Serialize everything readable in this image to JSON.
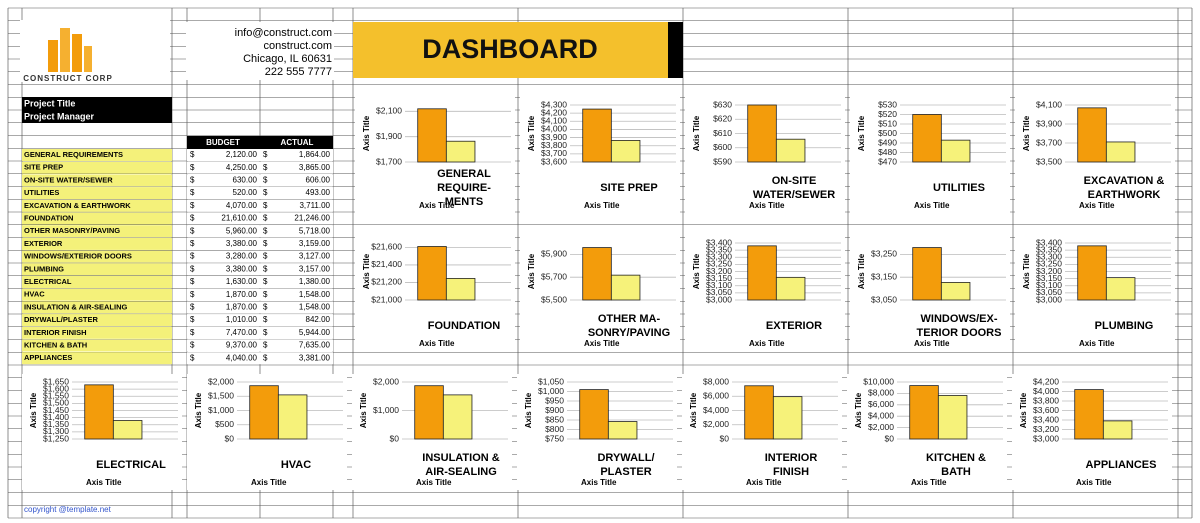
{
  "header": {
    "company": "CONSTRUCT CORP",
    "contact": [
      "info@construct.com",
      "construct.com",
      "Chicago, IL 60631",
      "222 555 7777"
    ],
    "title": "DASHBOARD"
  },
  "project": [
    "Project Title",
    "Project Manager"
  ],
  "table": {
    "columns": [
      "BUDGET",
      "ACTUAL"
    ],
    "currency": "$",
    "rows": [
      [
        "GENERAL REQUIREMENTS",
        "2,120.00",
        "1,864.00"
      ],
      [
        "SITE PREP",
        "4,250.00",
        "3,865.00"
      ],
      [
        "ON-SITE WATER/SEWER",
        "630.00",
        "606.00"
      ],
      [
        "UTILITIES",
        "520.00",
        "493.00"
      ],
      [
        "EXCAVATION & EARTHWORK",
        "4,070.00",
        "3,711.00"
      ],
      [
        "FOUNDATION",
        "21,610.00",
        "21,246.00"
      ],
      [
        "OTHER MASONRY/PAVING",
        "5,960.00",
        "5,718.00"
      ],
      [
        "EXTERIOR",
        "3,380.00",
        "3,159.00"
      ],
      [
        "WINDOWS/EXTERIOR DOORS",
        "3,280.00",
        "3,127.00"
      ],
      [
        "PLUMBING",
        "3,380.00",
        "3,157.00"
      ],
      [
        "ELECTRICAL",
        "1,630.00",
        "1,380.00"
      ],
      [
        "HVAC",
        "1,870.00",
        "1,548.00"
      ],
      [
        "INSULATION & AIR-SEALING",
        "1,870.00",
        "1,548.00"
      ],
      [
        "DRYWALL/PLASTER",
        "1,010.00",
        "842.00"
      ],
      [
        "INTERIOR FINISH",
        "7,470.00",
        "5,944.00"
      ],
      [
        "KITCHEN & BATH",
        "9,370.00",
        "7,635.00"
      ],
      [
        "APPLIANCES",
        "4,040.00",
        "3,381.00"
      ]
    ]
  },
  "chart_data": [
    {
      "type": "bar",
      "title": [
        "GENERAL",
        "REQUIRE-",
        "MENTS"
      ],
      "xlabel": "Axis Title",
      "ylabel": "Axis Title",
      "values": [
        2120,
        1864
      ],
      "colors": [
        "#f39c0b",
        "#f6f27a"
      ],
      "ylim": [
        1700,
        2150
      ],
      "yticks": [
        {
          "value": 1700,
          "label": "$1,700"
        },
        {
          "value": 1900,
          "label": "$1,900"
        },
        {
          "value": 2100,
          "label": "$2,100"
        }
      ]
    },
    {
      "type": "bar",
      "title": [
        "SITE PREP"
      ],
      "xlabel": "Axis Title",
      "ylabel": "Axis Title",
      "values": [
        4250,
        3865
      ],
      "colors": [
        "#f39c0b",
        "#f6f27a"
      ],
      "ylim": [
        3600,
        4300
      ],
      "yticks": [
        {
          "value": 3600,
          "label": "$3,600"
        },
        {
          "value": 3700,
          "label": "$3,700"
        },
        {
          "value": 3800,
          "label": "$3,800"
        },
        {
          "value": 3900,
          "label": "$3,900"
        },
        {
          "value": 4000,
          "label": "$4,000"
        },
        {
          "value": 4100,
          "label": "$4,100"
        },
        {
          "value": 4200,
          "label": "$4,200"
        },
        {
          "value": 4300,
          "label": "$4,300"
        }
      ]
    },
    {
      "type": "bar",
      "title": [
        "ON-SITE",
        "WATER/SEWER"
      ],
      "xlabel": "Axis Title",
      "ylabel": "Axis Title",
      "values": [
        630,
        606
      ],
      "colors": [
        "#f39c0b",
        "#f6f27a"
      ],
      "ylim": [
        590,
        630
      ],
      "yticks": [
        {
          "value": 590,
          "label": "$590"
        },
        {
          "value": 600,
          "label": "$600"
        },
        {
          "value": 610,
          "label": "$610"
        },
        {
          "value": 620,
          "label": "$620"
        },
        {
          "value": 630,
          "label": "$630"
        }
      ]
    },
    {
      "type": "bar",
      "title": [
        "UTILITIES"
      ],
      "xlabel": "Axis Title",
      "ylabel": "Axis Title",
      "values": [
        520,
        493
      ],
      "colors": [
        "#f39c0b",
        "#f6f27a"
      ],
      "ylim": [
        470,
        530
      ],
      "yticks": [
        {
          "value": 470,
          "label": "$470"
        },
        {
          "value": 480,
          "label": "$480"
        },
        {
          "value": 490,
          "label": "$490"
        },
        {
          "value": 500,
          "label": "$500"
        },
        {
          "value": 510,
          "label": "$510"
        },
        {
          "value": 520,
          "label": "$520"
        },
        {
          "value": 530,
          "label": "$530"
        }
      ]
    },
    {
      "type": "bar",
      "title": [
        "EXCAVATION &",
        "EARTHWORK"
      ],
      "xlabel": "Axis Title",
      "ylabel": "Axis Title",
      "values": [
        4070,
        3711
      ],
      "colors": [
        "#f39c0b",
        "#f6f27a"
      ],
      "ylim": [
        3500,
        4100
      ],
      "yticks": [
        {
          "value": 3500,
          "label": "$3,500"
        },
        {
          "value": 3700,
          "label": "$3,700"
        },
        {
          "value": 3900,
          "label": "$3,900"
        },
        {
          "value": 4100,
          "label": "$4,100"
        }
      ]
    },
    {
      "type": "bar",
      "title": [
        "FOUNDATION"
      ],
      "xlabel": "Axis Title",
      "ylabel": "Axis Title",
      "values": [
        21610,
        21246
      ],
      "colors": [
        "#f39c0b",
        "#f6f27a"
      ],
      "ylim": [
        21000,
        21650
      ],
      "yticks": [
        {
          "value": 21000,
          "label": "$21,000"
        },
        {
          "value": 21200,
          "label": "$21,200"
        },
        {
          "value": 21400,
          "label": "$21,400"
        },
        {
          "value": 21600,
          "label": "$21,600"
        }
      ]
    },
    {
      "type": "bar",
      "title": [
        "OTHER MA-",
        "SONRY/PAVING"
      ],
      "xlabel": "Axis Title",
      "ylabel": "Axis Title",
      "values": [
        5960,
        5718
      ],
      "colors": [
        "#f39c0b",
        "#f6f27a"
      ],
      "ylim": [
        5500,
        6000
      ],
      "yticks": [
        {
          "value": 5500,
          "label": "$5,500"
        },
        {
          "value": 5700,
          "label": "$5,700"
        },
        {
          "value": 5900,
          "label": "$5,900"
        }
      ]
    },
    {
      "type": "bar",
      "title": [
        "EXTERIOR"
      ],
      "xlabel": "Axis Title",
      "ylabel": "Axis Title",
      "values": [
        3380,
        3159
      ],
      "colors": [
        "#f39c0b",
        "#f6f27a"
      ],
      "ylim": [
        3000,
        3400
      ],
      "yticks": [
        {
          "value": 3000,
          "label": "$3,000"
        },
        {
          "value": 3050,
          "label": "$3,050"
        },
        {
          "value": 3100,
          "label": "$3,100"
        },
        {
          "value": 3150,
          "label": "$3,150"
        },
        {
          "value": 3200,
          "label": "$3,200"
        },
        {
          "value": 3250,
          "label": "$3,250"
        },
        {
          "value": 3300,
          "label": "$3,300"
        },
        {
          "value": 3350,
          "label": "$3,350"
        },
        {
          "value": 3400,
          "label": "$3,400"
        }
      ]
    },
    {
      "type": "bar",
      "title": [
        "WINDOWS/EX-",
        "TERIOR DOORS"
      ],
      "xlabel": "Axis Title",
      "ylabel": "Axis Title",
      "values": [
        3280,
        3127
      ],
      "colors": [
        "#f39c0b",
        "#f6f27a"
      ],
      "ylim": [
        3050,
        3300
      ],
      "yticks": [
        {
          "value": 3050,
          "label": "$3,050"
        },
        {
          "value": 3150,
          "label": "$3,150"
        },
        {
          "value": 3250,
          "label": "$3,250"
        }
      ]
    },
    {
      "type": "bar",
      "title": [
        "PLUMBING"
      ],
      "xlabel": "Axis Title",
      "ylabel": "Axis Title",
      "values": [
        3380,
        3157
      ],
      "colors": [
        "#f39c0b",
        "#f6f27a"
      ],
      "ylim": [
        3000,
        3400
      ],
      "yticks": [
        {
          "value": 3000,
          "label": "$3,000"
        },
        {
          "value": 3050,
          "label": "$3,050"
        },
        {
          "value": 3100,
          "label": "$3,100"
        },
        {
          "value": 3150,
          "label": "$3,150"
        },
        {
          "value": 3200,
          "label": "$3,200"
        },
        {
          "value": 3250,
          "label": "$3,250"
        },
        {
          "value": 3300,
          "label": "$3,300"
        },
        {
          "value": 3350,
          "label": "$3,350"
        },
        {
          "value": 3400,
          "label": "$3,400"
        }
      ]
    },
    {
      "type": "bar",
      "title": [
        "ELECTRICAL"
      ],
      "xlabel": "Axis Title",
      "ylabel": "Axis Title",
      "values": [
        1630,
        1380
      ],
      "colors": [
        "#f39c0b",
        "#f6f27a"
      ],
      "ylim": [
        1250,
        1650
      ],
      "yticks": [
        {
          "value": 1250,
          "label": "$1,250"
        },
        {
          "value": 1300,
          "label": "$1,300"
        },
        {
          "value": 1350,
          "label": "$1,350"
        },
        {
          "value": 1400,
          "label": "$1,400"
        },
        {
          "value": 1450,
          "label": "$1,450"
        },
        {
          "value": 1500,
          "label": "$1,500"
        },
        {
          "value": 1550,
          "label": "$1,550"
        },
        {
          "value": 1600,
          "label": "$1,600"
        },
        {
          "value": 1650,
          "label": "$1,650"
        }
      ]
    },
    {
      "type": "bar",
      "title": [
        "HVAC"
      ],
      "xlabel": "Axis Title",
      "ylabel": "Axis Title",
      "values": [
        1870,
        1548
      ],
      "colors": [
        "#f39c0b",
        "#f6f27a"
      ],
      "ylim": [
        0,
        2000
      ],
      "yticks": [
        {
          "value": 0,
          "label": "$0"
        },
        {
          "value": 500,
          "label": "$500"
        },
        {
          "value": 1000,
          "label": "$1,000"
        },
        {
          "value": 1500,
          "label": "$1,500"
        },
        {
          "value": 2000,
          "label": "$2,000"
        }
      ]
    },
    {
      "type": "bar",
      "title": [
        "INSULATION &",
        "AIR-SEALING"
      ],
      "xlabel": "Axis Title",
      "ylabel": "Axis Title",
      "values": [
        1870,
        1548
      ],
      "colors": [
        "#f39c0b",
        "#f6f27a"
      ],
      "ylim": [
        0,
        2000
      ],
      "yticks": [
        {
          "value": 0,
          "label": "$0"
        },
        {
          "value": 1000,
          "label": "$1,000"
        },
        {
          "value": 2000,
          "label": "$2,000"
        }
      ]
    },
    {
      "type": "bar",
      "title": [
        "DRYWALL/",
        "PLASTER"
      ],
      "xlabel": "Axis Title",
      "ylabel": "Axis Title",
      "values": [
        1010,
        842
      ],
      "colors": [
        "#f39c0b",
        "#f6f27a"
      ],
      "ylim": [
        750,
        1050
      ],
      "yticks": [
        {
          "value": 750,
          "label": "$750"
        },
        {
          "value": 800,
          "label": "$800"
        },
        {
          "value": 850,
          "label": "$850"
        },
        {
          "value": 900,
          "label": "$900"
        },
        {
          "value": 950,
          "label": "$950"
        },
        {
          "value": 1000,
          "label": "$1,000"
        },
        {
          "value": 1050,
          "label": "$1,050"
        }
      ]
    },
    {
      "type": "bar",
      "title": [
        "INTERIOR",
        "FINISH"
      ],
      "xlabel": "Axis Title",
      "ylabel": "Axis Title",
      "values": [
        7470,
        5944
      ],
      "colors": [
        "#f39c0b",
        "#f6f27a"
      ],
      "ylim": [
        0,
        8000
      ],
      "yticks": [
        {
          "value": 0,
          "label": "$0"
        },
        {
          "value": 2000,
          "label": "$2,000"
        },
        {
          "value": 4000,
          "label": "$4,000"
        },
        {
          "value": 6000,
          "label": "$6,000"
        },
        {
          "value": 8000,
          "label": "$8,000"
        }
      ]
    },
    {
      "type": "bar",
      "title": [
        "KITCHEN &",
        "BATH"
      ],
      "xlabel": "Axis Title",
      "ylabel": "Axis Title",
      "values": [
        9370,
        7635
      ],
      "colors": [
        "#f39c0b",
        "#f6f27a"
      ],
      "ylim": [
        0,
        10000
      ],
      "yticks": [
        {
          "value": 0,
          "label": "$0"
        },
        {
          "value": 2000,
          "label": "$2,000"
        },
        {
          "value": 4000,
          "label": "$4,000"
        },
        {
          "value": 6000,
          "label": "$6,000"
        },
        {
          "value": 8000,
          "label": "$8,000"
        },
        {
          "value": 10000,
          "label": "$10,000"
        }
      ]
    },
    {
      "type": "bar",
      "title": [
        "APPLIANCES"
      ],
      "xlabel": "Axis Title",
      "ylabel": "Axis Title",
      "values": [
        4040,
        3381
      ],
      "colors": [
        "#f39c0b",
        "#f6f27a"
      ],
      "ylim": [
        3000,
        4200
      ],
      "yticks": [
        {
          "value": 3000,
          "label": "$3,000"
        },
        {
          "value": 3200,
          "label": "$3,200"
        },
        {
          "value": 3400,
          "label": "$3,400"
        },
        {
          "value": 3600,
          "label": "$3,600"
        },
        {
          "value": 3800,
          "label": "$3,800"
        },
        {
          "value": 4000,
          "label": "$4,000"
        },
        {
          "value": 4200,
          "label": "$4,200"
        }
      ]
    }
  ],
  "footer": "copyright @template.net"
}
